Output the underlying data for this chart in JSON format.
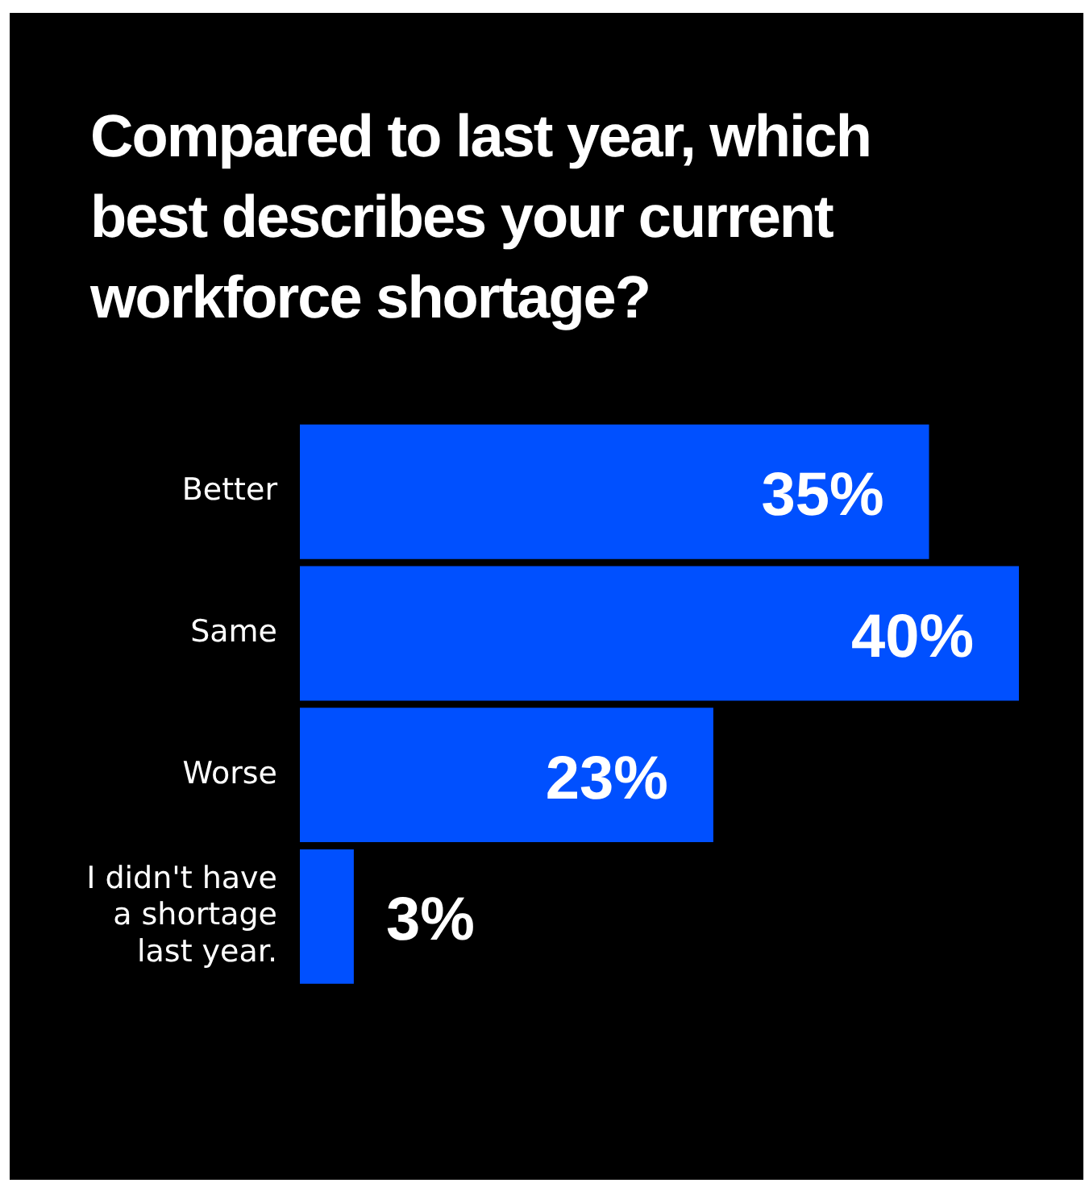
{
  "chart_data": {
    "type": "bar",
    "orientation": "horizontal",
    "title": "Compared to last year, which best describes your current workforce shortage?",
    "categories": [
      "Better",
      "Same",
      "Worse",
      "I didn't have a shortage last year."
    ],
    "values": [
      35,
      40,
      23,
      3
    ],
    "color": "#0050ff",
    "data_labels": true,
    "value_labels": [
      "35%",
      "40%",
      "23%",
      "3%"
    ],
    "legend": false
  }
}
